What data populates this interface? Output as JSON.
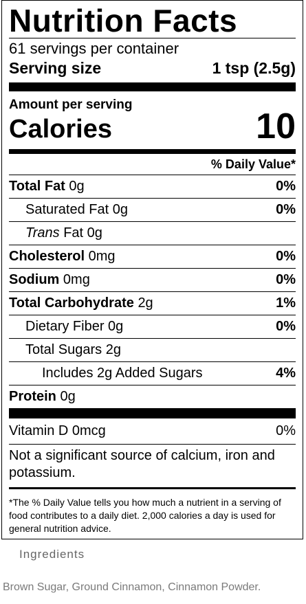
{
  "label": {
    "title": "Nutrition Facts",
    "servings": "61 servings per container",
    "serving_size_label": "Serving size",
    "serving_size_value": "1 tsp (2.5g)",
    "amount_per_serving": "Amount per serving",
    "calories_label": "Calories",
    "calories_value": "10",
    "dv_header": "% Daily Value*",
    "rows": [
      {
        "name": "Total Fat",
        "amount": "0g",
        "pct": "0%"
      },
      {
        "name": "Saturated Fat",
        "amount": "0g",
        "pct": "0%"
      },
      {
        "name": "Trans",
        "name_rest": "Fat",
        "amount": "0g",
        "pct": ""
      },
      {
        "name": "Cholesterol",
        "amount": "0mg",
        "pct": "0%"
      },
      {
        "name": "Sodium",
        "amount": "0mg",
        "pct": "0%"
      },
      {
        "name": "Total Carbohydrate",
        "amount": "2g",
        "pct": "1%"
      },
      {
        "name": "Dietary Fiber",
        "amount": "0g",
        "pct": "0%"
      },
      {
        "name": "Total Sugars",
        "amount": "2g",
        "pct": ""
      },
      {
        "name": "Includes 2g Added Sugars",
        "amount": "",
        "pct": "4%"
      },
      {
        "name": "Protein",
        "amount": "0g",
        "pct": ""
      }
    ],
    "vitamin_d": {
      "name": "Vitamin D",
      "amount": "0mcg",
      "pct": "0%"
    },
    "note": "Not a significant source of calcium, iron and potassium.",
    "footnote": "*The % Daily Value tells you how much a nutrient in a serving of food contributes to a daily diet. 2,000 calories a day is used for general nutrition advice."
  },
  "ingredients": {
    "title": "Ingredients",
    "text": "Brown Sugar, Ground Cinnamon, Cinnamon Powder."
  }
}
